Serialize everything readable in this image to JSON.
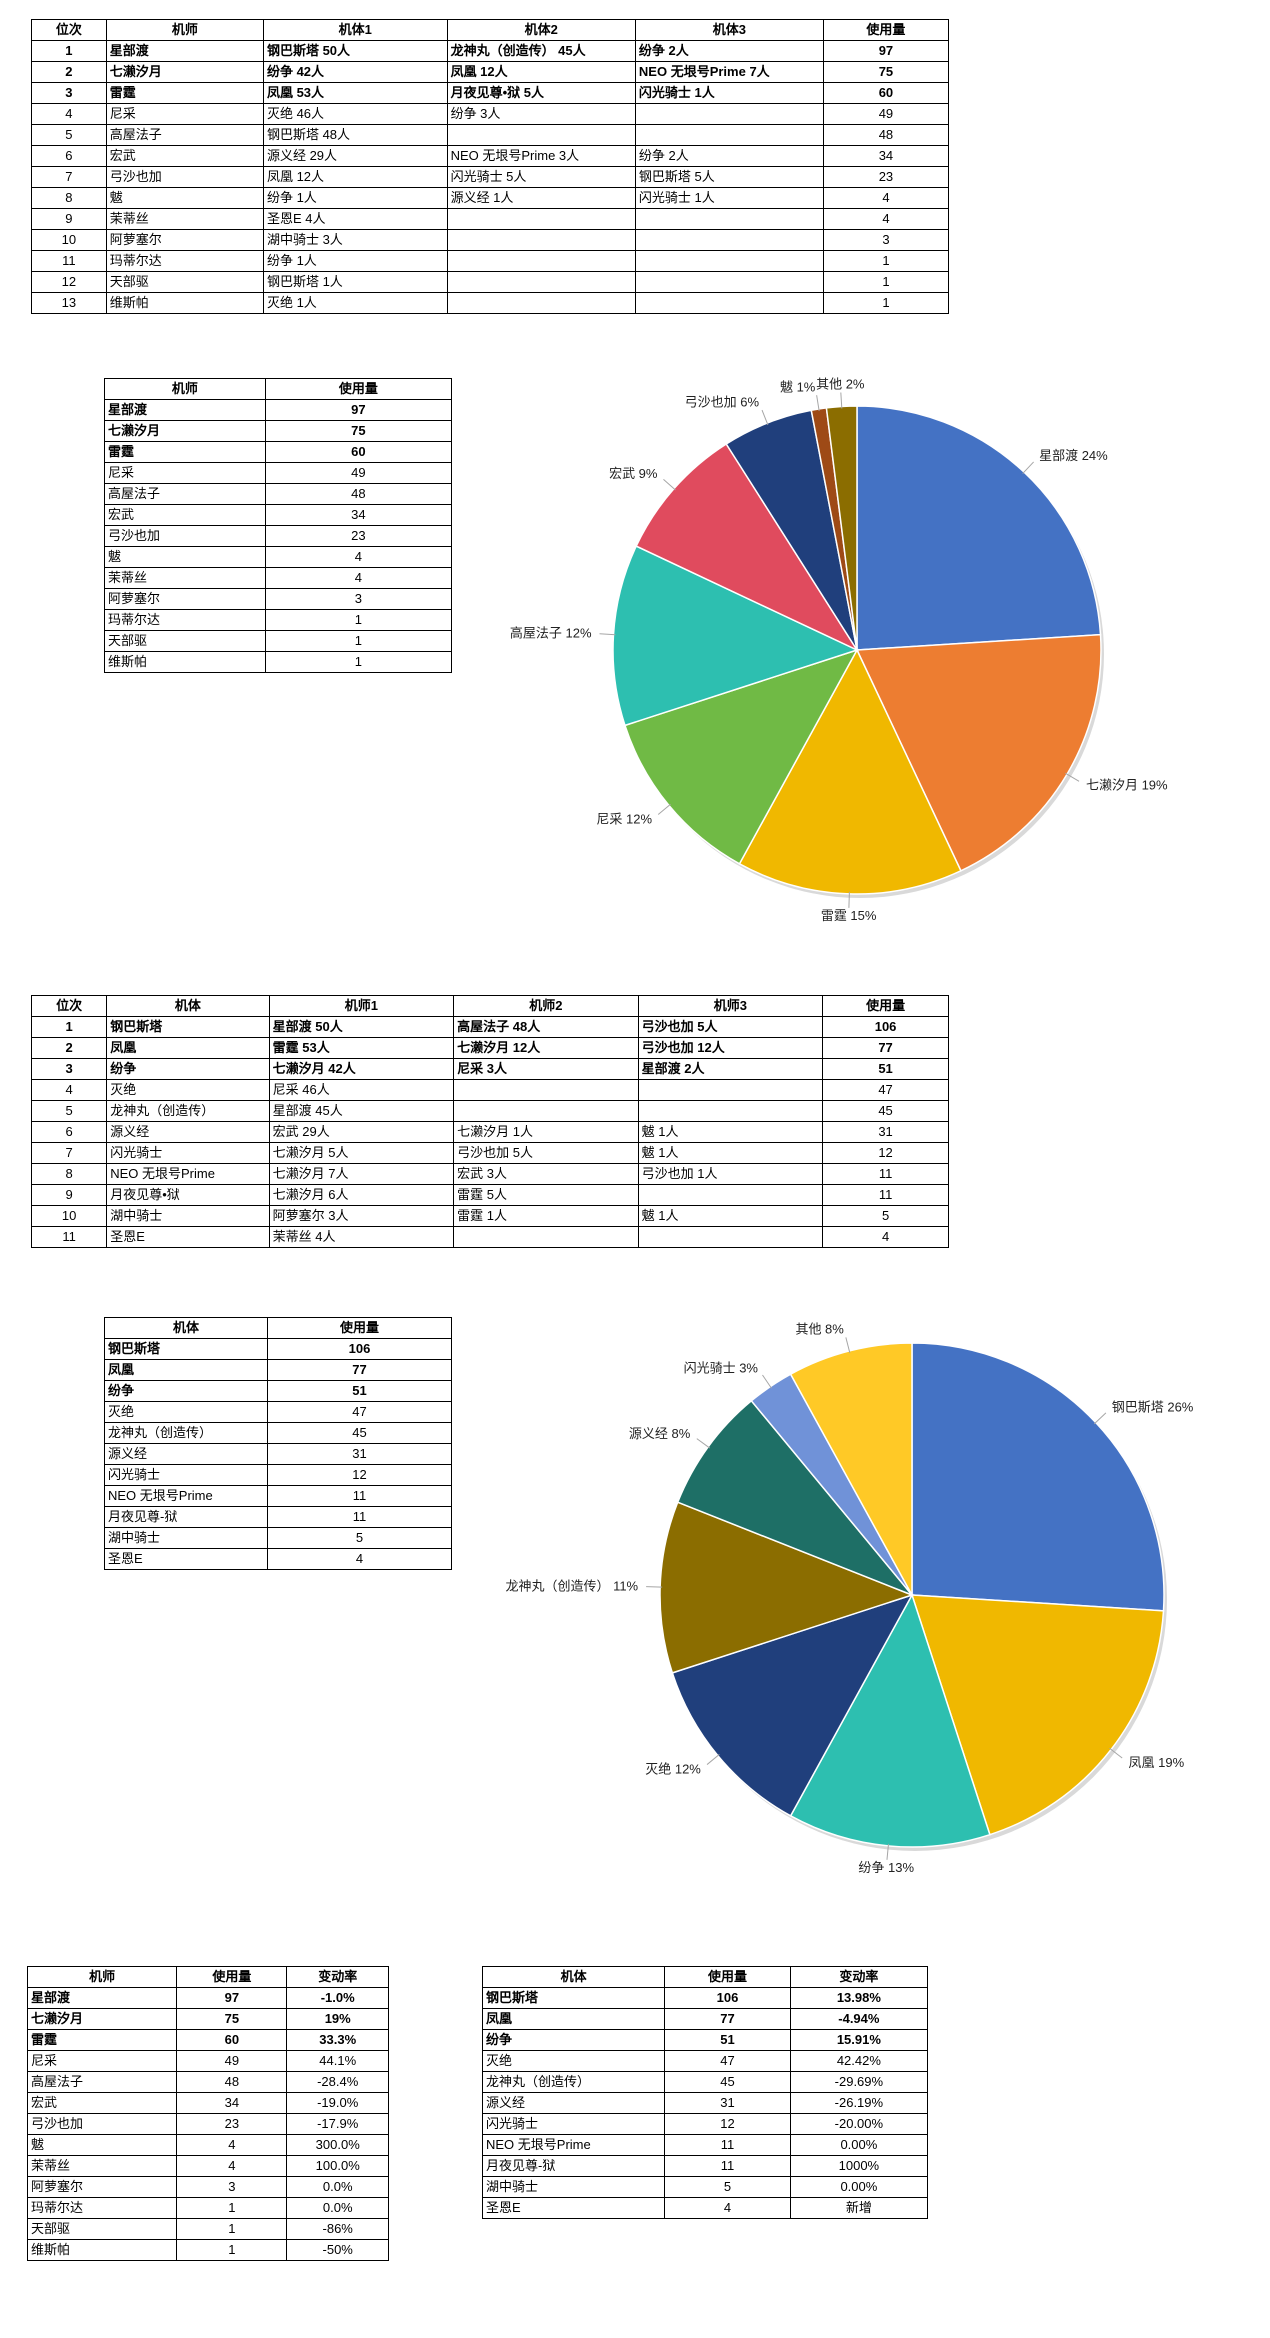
{
  "pilot_rank_table": {
    "headers": [
      "位次",
      "机师",
      "机体1",
      "机体2",
      "机体3",
      "使用量"
    ],
    "rows": [
      [
        "1",
        "星部渡",
        "钢巴斯塔 50人",
        "龙神丸（创造传） 45人",
        "纷争 2人",
        "97"
      ],
      [
        "2",
        "七濑汐月",
        "纷争 42人",
        "凤凰 12人",
        "NEO 无垠号Prime 7人",
        "75"
      ],
      [
        "3",
        "雷霆",
        "凤凰 53人",
        "月夜见尊•狱 5人",
        "闪光骑士 1人",
        "60"
      ],
      [
        "4",
        "尼采",
        "灭绝 46人",
        "纷争 3人",
        "",
        "49"
      ],
      [
        "5",
        "高屋法子",
        "钢巴斯塔 48人",
        "",
        "",
        "48"
      ],
      [
        "6",
        "宏武",
        "源义经 29人",
        "NEO 无垠号Prime 3人",
        "纷争 2人",
        "34"
      ],
      [
        "7",
        "弓沙也加",
        "凤凰 12人",
        "闪光骑士 5人",
        "钢巴斯塔 5人",
        "23"
      ],
      [
        "8",
        "魃",
        "纷争 1人",
        "源义经 1人",
        "闪光骑士 1人",
        "4"
      ],
      [
        "9",
        "茉蒂丝",
        "圣恩E 4人",
        "",
        "",
        "4"
      ],
      [
        "10",
        "阿萝塞尔",
        "湖中骑士 3人",
        "",
        "",
        "3"
      ],
      [
        "11",
        "玛蒂尔达",
        "纷争 1人",
        "",
        "",
        "1"
      ],
      [
        "12",
        "天部驱",
        "钢巴斯塔 1人",
        "",
        "",
        "1"
      ],
      [
        "13",
        "维斯帕",
        "灭绝 1人",
        "",
        "",
        "1"
      ]
    ]
  },
  "pilot_usage_table": {
    "headers": [
      "机师",
      "使用量"
    ],
    "rows": [
      [
        "星部渡",
        "97"
      ],
      [
        "七濑汐月",
        "75"
      ],
      [
        "雷霆",
        "60"
      ],
      [
        "尼采",
        "49"
      ],
      [
        "高屋法子",
        "48"
      ],
      [
        "宏武",
        "34"
      ],
      [
        "弓沙也加",
        "23"
      ],
      [
        "魃",
        "4"
      ],
      [
        "茉蒂丝",
        "4"
      ],
      [
        "阿萝塞尔",
        "3"
      ],
      [
        "玛蒂尔达",
        "1"
      ],
      [
        "天部驱",
        "1"
      ],
      [
        "维斯帕",
        "1"
      ]
    ]
  },
  "mecha_rank_table": {
    "headers": [
      "位次",
      "机体",
      "机师1",
      "机师2",
      "机师3",
      "使用量"
    ],
    "rows": [
      [
        "1",
        "钢巴斯塔",
        "星部渡 50人",
        "高屋法子 48人",
        "弓沙也加 5人",
        "106"
      ],
      [
        "2",
        "凤凰",
        "雷霆 53人",
        "七濑汐月 12人",
        "弓沙也加 12人",
        "77"
      ],
      [
        "3",
        "纷争",
        "七濑汐月 42人",
        "尼采 3人",
        "星部渡 2人",
        "51"
      ],
      [
        "4",
        "灭绝",
        "尼采 46人",
        "",
        "",
        "47"
      ],
      [
        "5",
        "龙神丸（创造传）",
        "星部渡 45人",
        "",
        "",
        "45"
      ],
      [
        "6",
        "源义经",
        "宏武 29人",
        "七濑汐月 1人",
        "魃 1人",
        "31"
      ],
      [
        "7",
        "闪光骑士",
        "七濑汐月 5人",
        "弓沙也加 5人",
        "魃 1人",
        "12"
      ],
      [
        "8",
        "NEO 无垠号Prime",
        "七濑汐月 7人",
        "宏武 3人",
        "弓沙也加 1人",
        "11"
      ],
      [
        "9",
        "月夜见尊•狱",
        "七濑汐月 6人",
        "雷霆 5人",
        "",
        "11"
      ],
      [
        "10",
        "湖中骑士",
        "阿萝塞尔 3人",
        "雷霆 1人",
        "魃 1人",
        "5"
      ],
      [
        "11",
        "圣恩E",
        "茉蒂丝 4人",
        "",
        "",
        "4"
      ]
    ]
  },
  "mecha_usage_table": {
    "headers": [
      "机体",
      "使用量"
    ],
    "rows": [
      [
        "钢巴斯塔",
        "106"
      ],
      [
        "凤凰",
        "77"
      ],
      [
        "纷争",
        "51"
      ],
      [
        "灭绝",
        "47"
      ],
      [
        "龙神丸（创造传）",
        "45"
      ],
      [
        "源义经",
        "31"
      ],
      [
        "闪光骑士",
        "12"
      ],
      [
        "NEO 无垠号Prime",
        "11"
      ],
      [
        "月夜见尊-狱",
        "11"
      ],
      [
        "湖中骑士",
        "5"
      ],
      [
        "圣恩E",
        "4"
      ]
    ]
  },
  "pilot_change_table": {
    "headers": [
      "机师",
      "使用量",
      "变动率"
    ],
    "rows": [
      [
        "星部渡",
        "97",
        "-1.0%"
      ],
      [
        "七濑汐月",
        "75",
        "19%"
      ],
      [
        "雷霆",
        "60",
        "33.3%"
      ],
      [
        "尼采",
        "49",
        "44.1%"
      ],
      [
        "高屋法子",
        "48",
        "-28.4%"
      ],
      [
        "宏武",
        "34",
        "-19.0%"
      ],
      [
        "弓沙也加",
        "23",
        "-17.9%"
      ],
      [
        "魃",
        "4",
        "300.0%"
      ],
      [
        "茉蒂丝",
        "4",
        "100.0%"
      ],
      [
        "阿萝塞尔",
        "3",
        "0.0%"
      ],
      [
        "玛蒂尔达",
        "1",
        "0.0%"
      ],
      [
        "天部驱",
        "1",
        "-86%"
      ],
      [
        "维斯帕",
        "1",
        "-50%"
      ]
    ]
  },
  "mecha_change_table": {
    "headers": [
      "机体",
      "使用量",
      "变动率"
    ],
    "rows": [
      [
        "钢巴斯塔",
        "106",
        "13.98%"
      ],
      [
        "凤凰",
        "77",
        "-4.94%"
      ],
      [
        "纷争",
        "51",
        "15.91%"
      ],
      [
        "灭绝",
        "47",
        "42.42%"
      ],
      [
        "龙神丸（创造传）",
        "45",
        "-29.69%"
      ],
      [
        "源义经",
        "31",
        "-26.19%"
      ],
      [
        "闪光骑士",
        "12",
        "-20.00%"
      ],
      [
        "NEO 无垠号Prime",
        "11",
        "0.00%"
      ],
      [
        "月夜见尊-狱",
        "11",
        "1000%"
      ],
      [
        "湖中骑士",
        "5",
        "0.00%"
      ],
      [
        "圣恩E",
        "4",
        "新增"
      ]
    ]
  },
  "chart_data": [
    {
      "type": "pie",
      "title": "",
      "slices": [
        {
          "label": "星部渡",
          "pct": "24%",
          "value": 24,
          "color": "#4472C4"
        },
        {
          "label": "七濑汐月",
          "pct": "19%",
          "value": 19,
          "color": "#ED7D31"
        },
        {
          "label": "雷霆",
          "pct": "15%",
          "value": 15,
          "color": "#F0B800"
        },
        {
          "label": "尼采",
          "pct": "12%",
          "value": 12,
          "color": "#70BA45"
        },
        {
          "label": "高屋法子",
          "pct": "12%",
          "value": 12,
          "color": "#2DBFB0"
        },
        {
          "label": "宏武",
          "pct": "9%",
          "value": 9,
          "color": "#E04B5E"
        },
        {
          "label": "弓沙也加",
          "pct": "6%",
          "value": 6,
          "color": "#203F7C"
        },
        {
          "label": "魃",
          "pct": "1%",
          "value": 1,
          "color": "#9E4A16"
        },
        {
          "label": "其他",
          "pct": "2%",
          "value": 2,
          "color": "#8B6D00"
        }
      ]
    },
    {
      "type": "pie",
      "title": "",
      "slices": [
        {
          "label": "钢巴斯塔",
          "pct": "26%",
          "value": 26,
          "color": "#4472C4"
        },
        {
          "label": "凤凰",
          "pct": "19%",
          "value": 19,
          "color": "#F0B800"
        },
        {
          "label": "纷争",
          "pct": "13%",
          "value": 13,
          "color": "#2DBFB0"
        },
        {
          "label": "灭绝",
          "pct": "12%",
          "value": 12,
          "color": "#203F7C"
        },
        {
          "label": "龙神丸（创造传）",
          "pct": "11%",
          "value": 11,
          "color": "#8B6D00"
        },
        {
          "label": "源义经",
          "pct": "8%",
          "value": 8,
          "color": "#1E6F66"
        },
        {
          "label": "闪光骑士",
          "pct": "3%",
          "value": 3,
          "color": "#7092D8"
        },
        {
          "label": "其他",
          "pct": "8%",
          "value": 8,
          "color": "#FFC926"
        }
      ]
    }
  ]
}
